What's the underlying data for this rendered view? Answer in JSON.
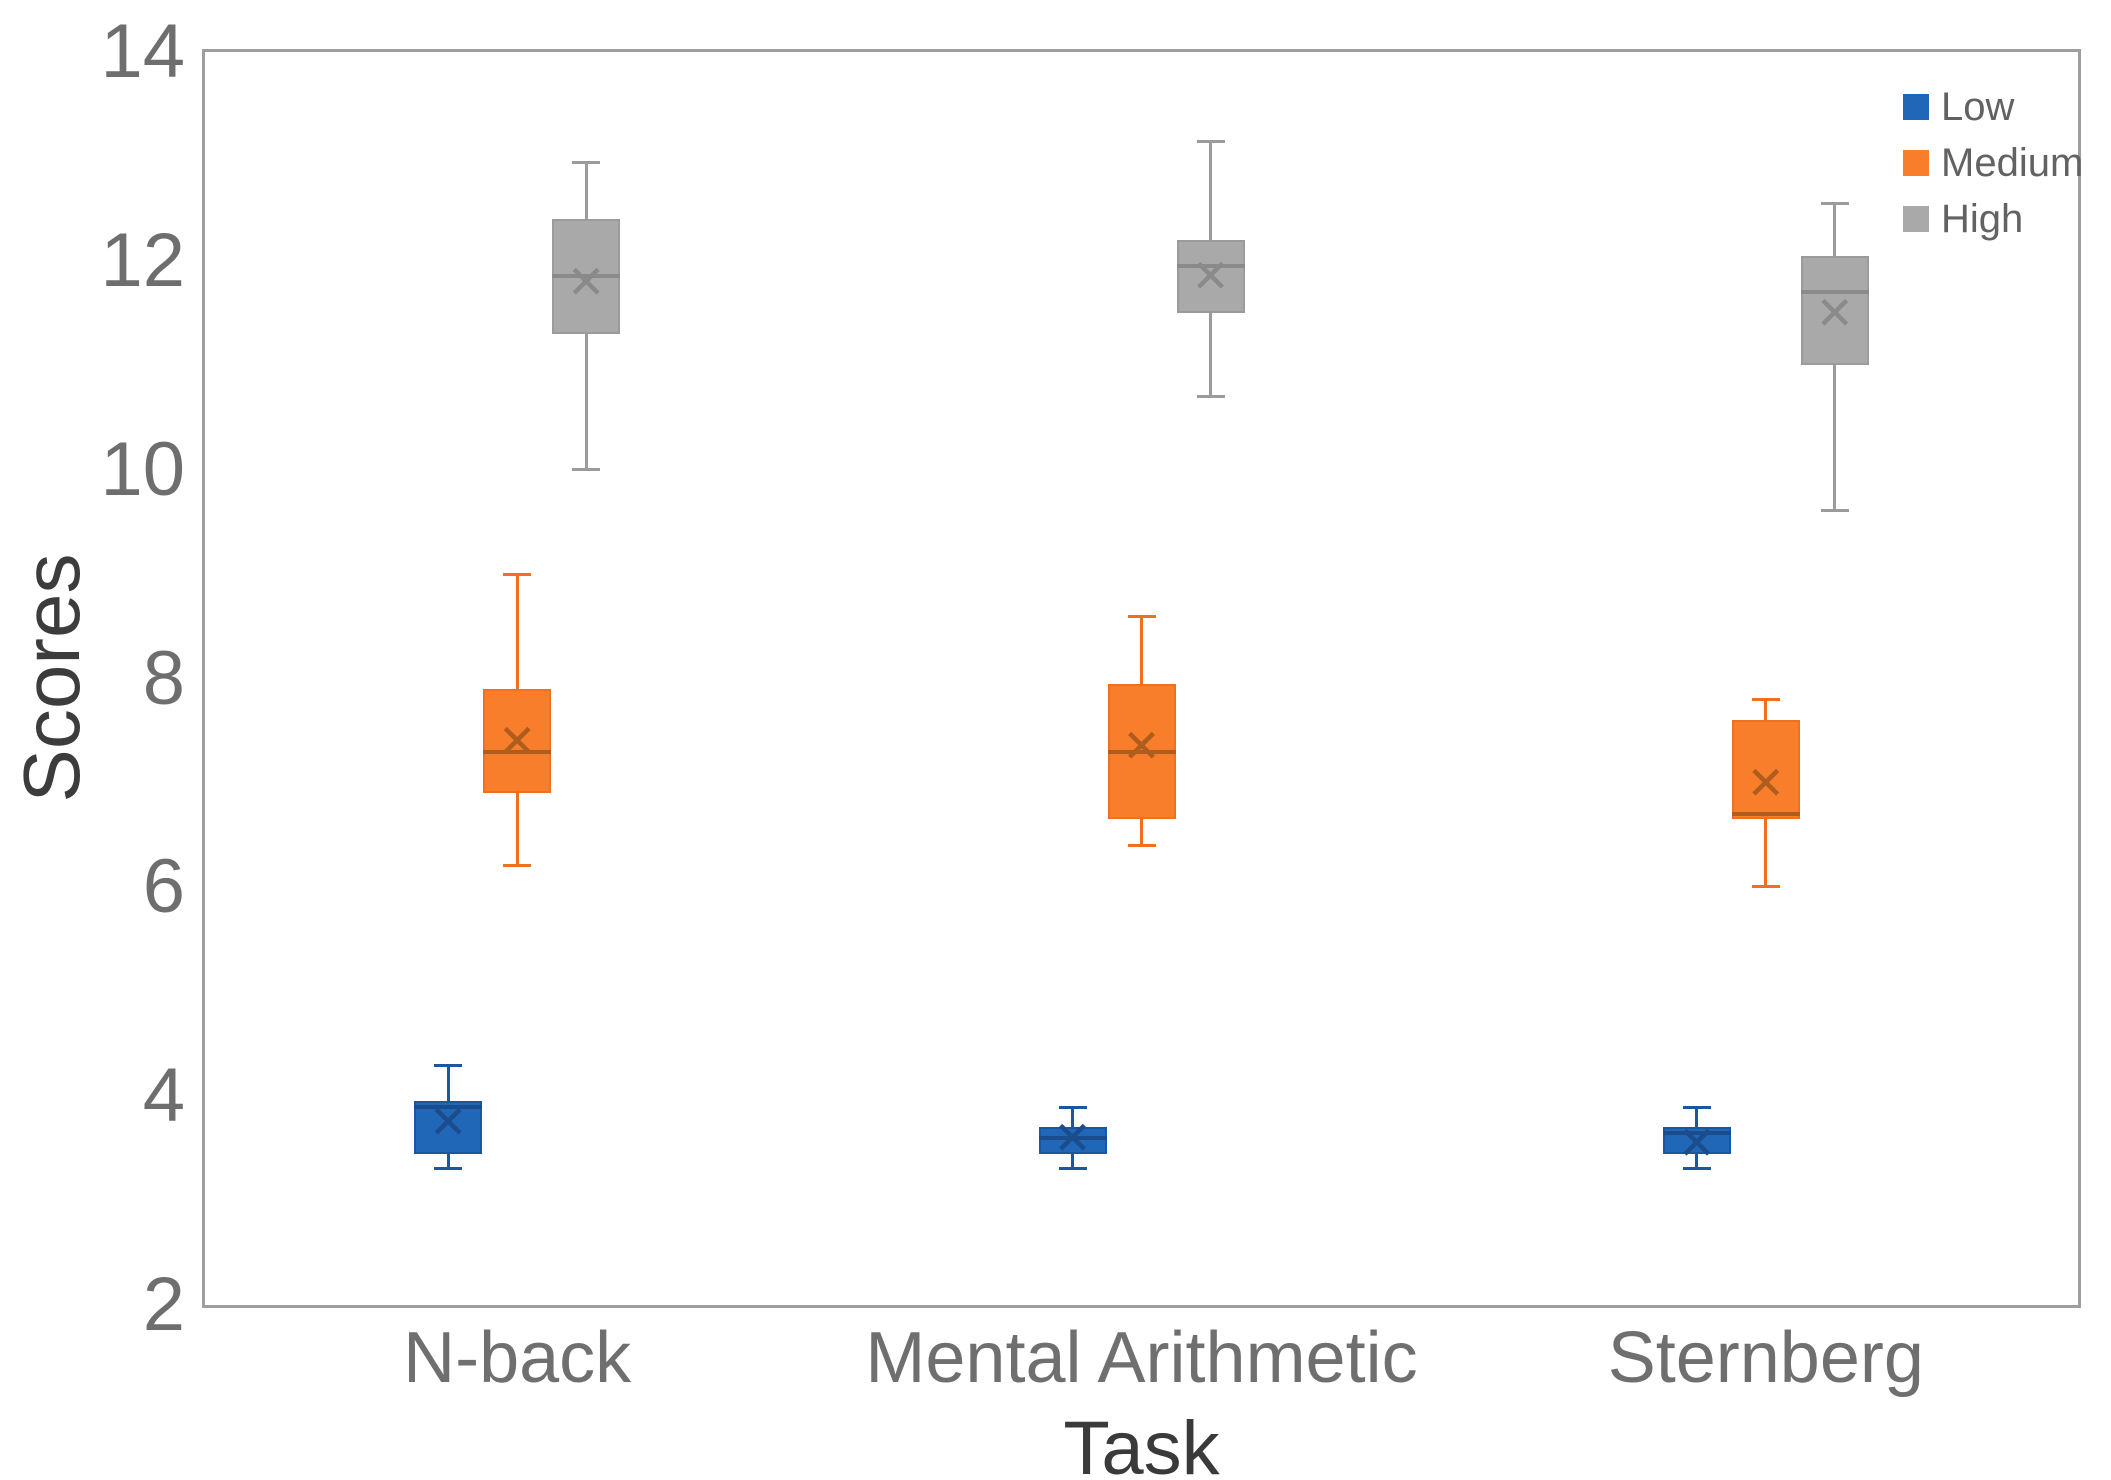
{
  "chart_data": {
    "type": "box",
    "title": "",
    "xlabel": "Task",
    "ylabel": "Scores",
    "ylim": [
      2,
      14
    ],
    "yticks": [
      2,
      4,
      6,
      8,
      10,
      12,
      14
    ],
    "grid": false,
    "legend_position": "top-right-inside",
    "categories": [
      "N-back",
      "Mental Arithmetic",
      "Sternberg"
    ],
    "series": [
      {
        "name": "Low",
        "fill_color": "#2167B8",
        "edge_color": "#1A57A3",
        "detail_color": "#1B4C8C",
        "boxes": [
          {
            "category": "N-back",
            "min": 3.3,
            "q1": 3.45,
            "median": 3.9,
            "q3": 3.95,
            "max": 4.3,
            "mean": 3.75
          },
          {
            "category": "Mental Arithmetic",
            "min": 3.3,
            "q1": 3.45,
            "median": 3.6,
            "q3": 3.7,
            "max": 3.9,
            "mean": 3.6
          },
          {
            "category": "Sternberg",
            "min": 3.3,
            "q1": 3.45,
            "median": 3.65,
            "q3": 3.7,
            "max": 3.9,
            "mean": 3.55
          }
        ]
      },
      {
        "name": "Medium",
        "fill_color": "#F87E2B",
        "edge_color": "#EF7120",
        "detail_color": "#AE5D1E",
        "boxes": [
          {
            "category": "N-back",
            "min": 6.2,
            "q1": 6.9,
            "median": 7.3,
            "q3": 7.9,
            "max": 9.0,
            "mean": 7.4
          },
          {
            "category": "Mental Arithmetic",
            "min": 6.4,
            "q1": 6.65,
            "median": 7.3,
            "q3": 7.95,
            "max": 8.6,
            "mean": 7.35
          },
          {
            "category": "Sternberg",
            "min": 6.0,
            "q1": 6.65,
            "median": 6.7,
            "q3": 7.6,
            "max": 7.8,
            "mean": 7.0
          }
        ]
      },
      {
        "name": "High",
        "fill_color": "#A9A9A9",
        "edge_color": "#9B9B9B",
        "detail_color": "#8A8A8A",
        "boxes": [
          {
            "category": "N-back",
            "min": 10.0,
            "q1": 11.3,
            "median": 11.85,
            "q3": 12.4,
            "max": 12.95,
            "mean": 11.8
          },
          {
            "category": "Mental Arithmetic",
            "min": 10.7,
            "q1": 11.5,
            "median": 11.95,
            "q3": 12.2,
            "max": 13.15,
            "mean": 11.85
          },
          {
            "category": "Sternberg",
            "min": 9.6,
            "q1": 11.0,
            "median": 11.7,
            "q3": 12.05,
            "max": 12.55,
            "mean": 11.5
          }
        ]
      }
    ]
  }
}
